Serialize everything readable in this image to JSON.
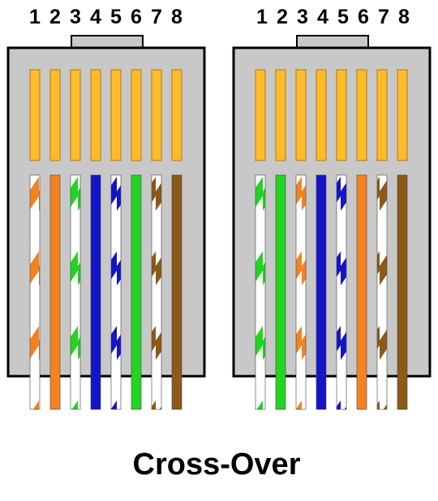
{
  "caption": "Cross-Over",
  "pin_numbers": [
    "1",
    "2",
    "3",
    "4",
    "5",
    "6",
    "7",
    "8"
  ],
  "colors": {
    "housing_fill": "#c8c8c8",
    "outline": "#000000",
    "contact": "#ffbb2a",
    "white": "#ffffff",
    "orange": "#f58220",
    "green": "#21d621",
    "blue": "#1414c8",
    "brown": "#8b5a17"
  },
  "connectors": [
    {
      "name": "left-connector",
      "wires": [
        {
          "pin": 1,
          "color": "orange",
          "striped": true
        },
        {
          "pin": 2,
          "color": "orange",
          "striped": false
        },
        {
          "pin": 3,
          "color": "green",
          "striped": true
        },
        {
          "pin": 4,
          "color": "blue",
          "striped": false
        },
        {
          "pin": 5,
          "color": "blue",
          "striped": true
        },
        {
          "pin": 6,
          "color": "green",
          "striped": false
        },
        {
          "pin": 7,
          "color": "brown",
          "striped": true
        },
        {
          "pin": 8,
          "color": "brown",
          "striped": false
        }
      ]
    },
    {
      "name": "right-connector",
      "wires": [
        {
          "pin": 1,
          "color": "green",
          "striped": true
        },
        {
          "pin": 2,
          "color": "green",
          "striped": false
        },
        {
          "pin": 3,
          "color": "orange",
          "striped": true
        },
        {
          "pin": 4,
          "color": "blue",
          "striped": false
        },
        {
          "pin": 5,
          "color": "blue",
          "striped": true
        },
        {
          "pin": 6,
          "color": "orange",
          "striped": false
        },
        {
          "pin": 7,
          "color": "brown",
          "striped": true
        },
        {
          "pin": 8,
          "color": "brown",
          "striped": false
        }
      ]
    }
  ]
}
